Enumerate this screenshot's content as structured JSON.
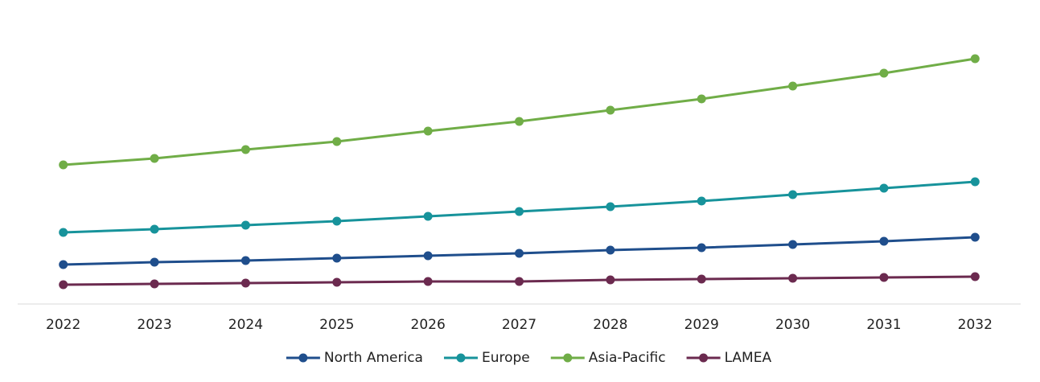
{
  "chart_data": {
    "type": "line",
    "categories": [
      "2022",
      "2023",
      "2024",
      "2025",
      "2026",
      "2027",
      "2028",
      "2029",
      "2030",
      "2031",
      "2032"
    ],
    "series": [
      {
        "name": "North America",
        "color": "#1f4e8c",
        "values": [
          4.9,
          5.2,
          5.4,
          5.7,
          6.0,
          6.3,
          6.7,
          7.0,
          7.4,
          7.8,
          8.3
        ]
      },
      {
        "name": "Europe",
        "color": "#17939b",
        "values": [
          8.9,
          9.3,
          9.8,
          10.3,
          10.9,
          11.5,
          12.1,
          12.8,
          13.6,
          14.4,
          15.2
        ]
      },
      {
        "name": "Asia-Pacific",
        "color": "#70ad47",
        "values": [
          17.3,
          18.1,
          19.2,
          20.2,
          21.5,
          22.7,
          24.1,
          25.5,
          27.1,
          28.7,
          30.5
        ]
      },
      {
        "name": "LAMEA",
        "color": "#6b2a4f",
        "values": [
          2.4,
          2.5,
          2.6,
          2.7,
          2.8,
          2.8,
          3.0,
          3.1,
          3.2,
          3.3,
          3.4
        ]
      }
    ],
    "ylim": [
      0,
      37.8
    ],
    "legend": "bottom"
  }
}
